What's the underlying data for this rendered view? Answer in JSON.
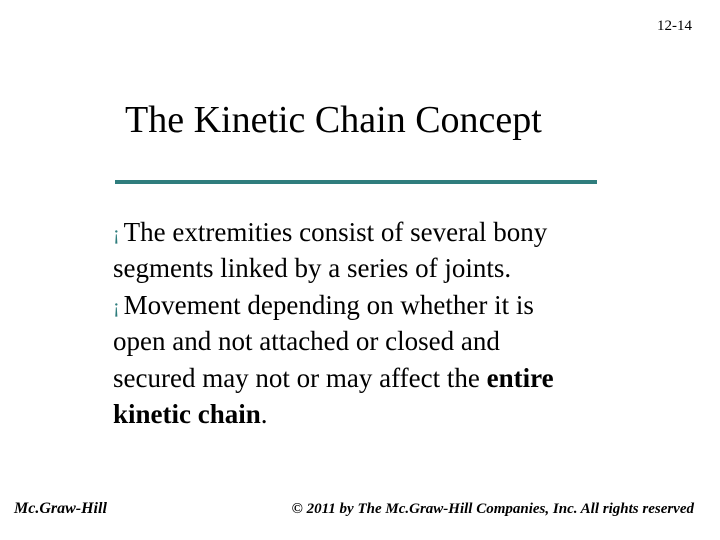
{
  "pageNumber": "12-14",
  "title": "The Kinetic Chain Concept",
  "titleUnderlineColor": "#2f7d7d",
  "bulletColor": "#2f7d7d",
  "body": {
    "line1a": "The extremities consist of several bony",
    "line2": "segments linked by a series of joints.",
    "line3a": "Movement depending on whether it is",
    "line4": "open and not attached or closed and",
    "line5a": "secured may not or may affect the ",
    "line5b": "entire",
    "line6": "kinetic chain"
  },
  "footer": {
    "left": "Mc.Graw-Hill",
    "right": "© 2011 by The Mc.Graw-Hill Companies, Inc. All rights reserved"
  },
  "typography": {
    "titleFontSize": 38,
    "bodyFontSize": 27,
    "footerFontSize": 15
  },
  "colors": {
    "background": "#ffffff",
    "text": "#000000",
    "accent": "#2f7d7d"
  }
}
